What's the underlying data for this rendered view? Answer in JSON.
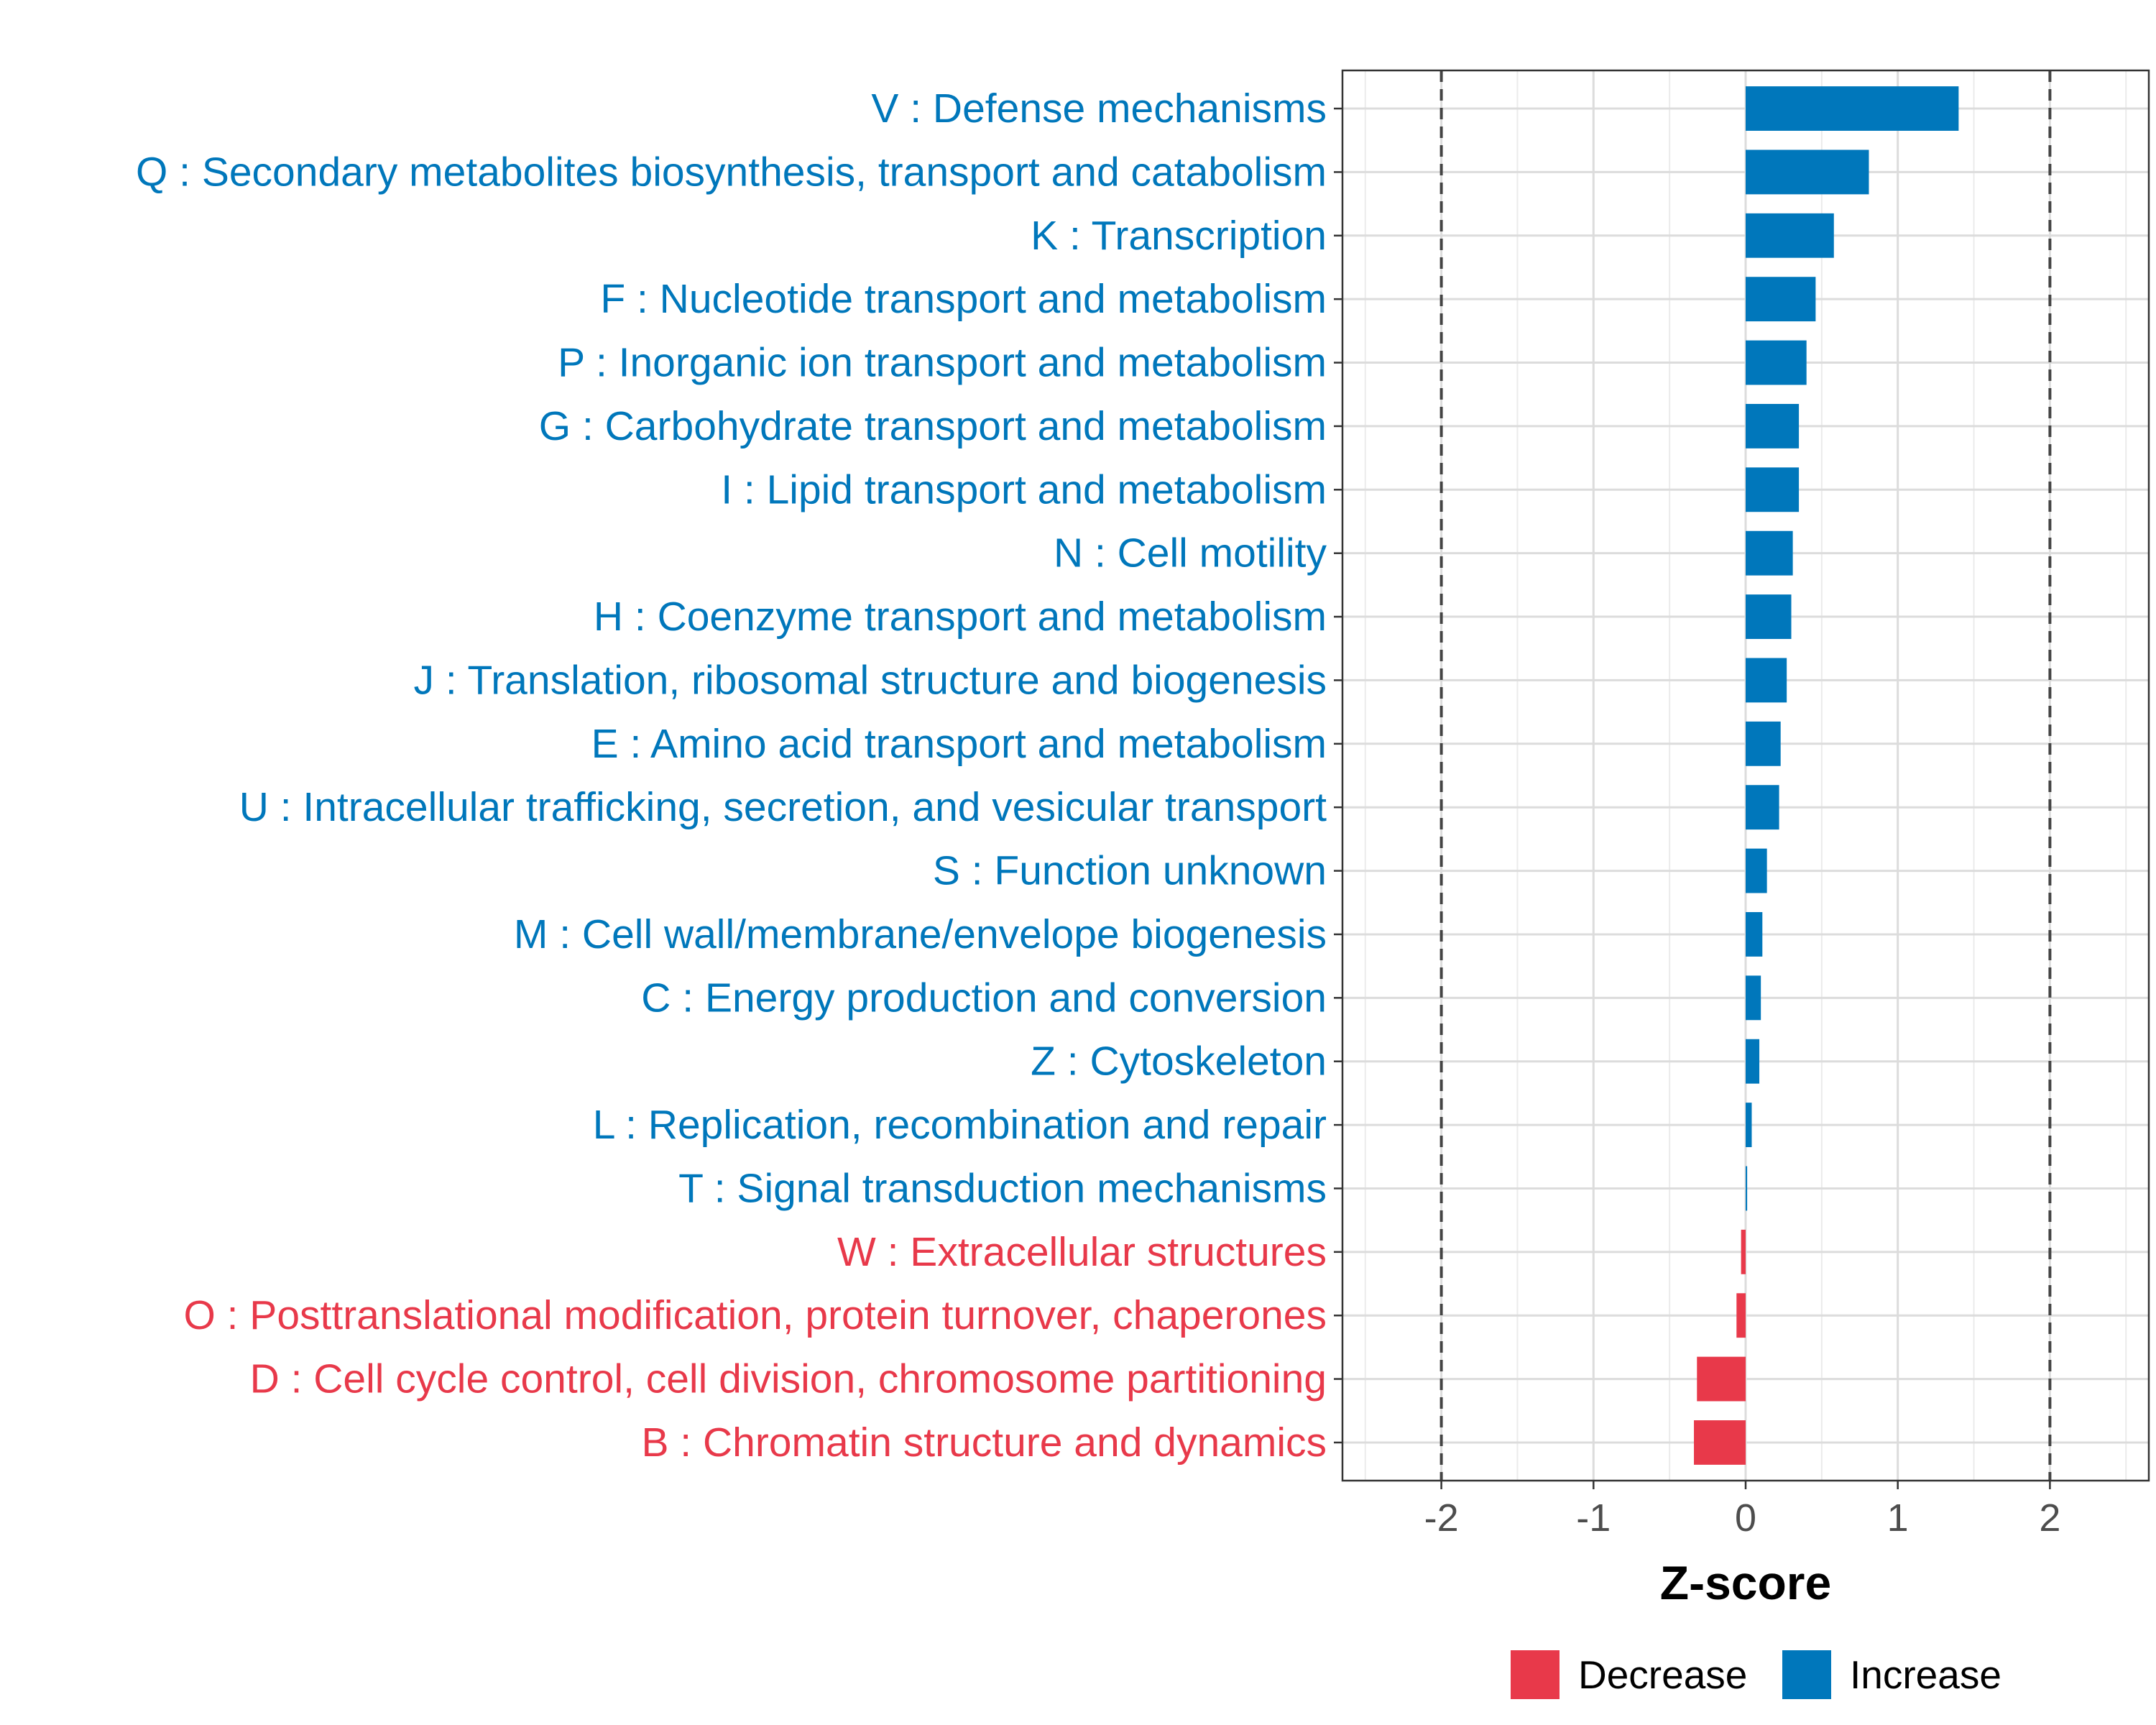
{
  "chart_data": {
    "type": "bar",
    "orientation": "horizontal",
    "xlabel": "Z-score",
    "xlim": [
      -2.65,
      2.65
    ],
    "xticks": [
      -2,
      -1,
      0,
      1,
      2
    ],
    "xtick_labels": [
      "-2",
      "-1",
      "0",
      "1",
      "2"
    ],
    "reference_lines": [
      -2,
      2
    ],
    "grid": true,
    "legend_position": "bottom",
    "legend": [
      {
        "name": "Decrease",
        "color": "#E8394A"
      },
      {
        "name": "Increase",
        "color": "#0077BB"
      }
    ],
    "categories": [
      "V : Defense mechanisms",
      "Q : Secondary metabolites biosynthesis, transport and catabolism",
      "K : Transcription",
      "F : Nucleotide transport and metabolism",
      "P : Inorganic ion transport and metabolism",
      "G : Carbohydrate transport and metabolism",
      "I : Lipid transport and metabolism",
      "N : Cell motility",
      "H : Coenzyme transport and metabolism",
      "J : Translation, ribosomal structure and biogenesis",
      "E : Amino acid transport and metabolism",
      "U : Intracellular trafficking, secretion, and vesicular transport",
      "S : Function unknown",
      "M : Cell wall/membrane/envelope biogenesis",
      "C : Energy production and conversion",
      "Z : Cytoskeleton",
      "L : Replication, recombination and repair",
      "T : Signal transduction mechanisms",
      "W : Extracellular structures",
      "O : Posttranslational modification, protein turnover, chaperones",
      "D : Cell cycle control, cell division, chromosome partitioning",
      "B : Chromatin structure and dynamics"
    ],
    "values": [
      1.4,
      0.81,
      0.58,
      0.46,
      0.4,
      0.35,
      0.35,
      0.31,
      0.3,
      0.27,
      0.23,
      0.22,
      0.14,
      0.11,
      0.1,
      0.09,
      0.04,
      0.01,
      -0.03,
      -0.06,
      -0.32,
      -0.34
    ],
    "groups": [
      "Increase",
      "Increase",
      "Increase",
      "Increase",
      "Increase",
      "Increase",
      "Increase",
      "Increase",
      "Increase",
      "Increase",
      "Increase",
      "Increase",
      "Increase",
      "Increase",
      "Increase",
      "Increase",
      "Increase",
      "Increase",
      "Decrease",
      "Decrease",
      "Decrease",
      "Decrease"
    ]
  }
}
